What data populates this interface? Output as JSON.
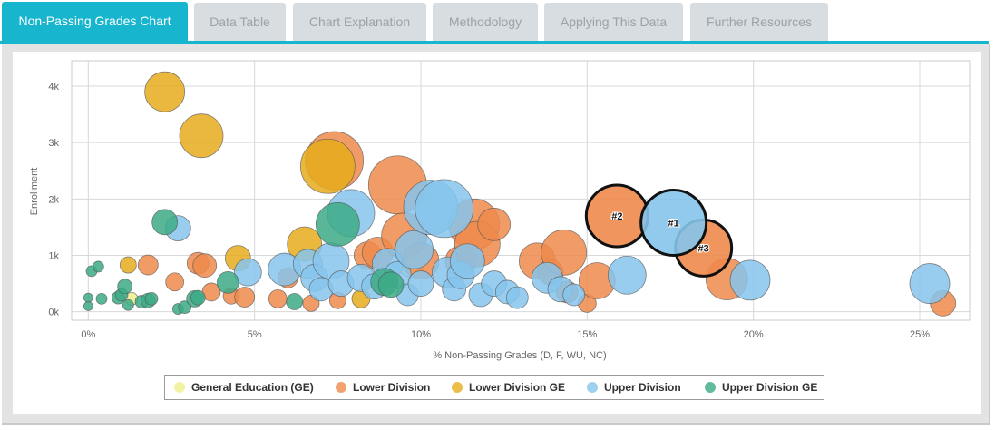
{
  "tabs": [
    {
      "label": "Non-Passing Grades Chart",
      "active": true
    },
    {
      "label": "Data Table"
    },
    {
      "label": "Chart Explanation"
    },
    {
      "label": "Methodology"
    },
    {
      "label": "Applying This Data"
    },
    {
      "label": "Further Resources"
    }
  ],
  "colors": {
    "General Education (GE)": "#f0ee8c",
    "Lower Division": "#ef8a4c",
    "Lower Division GE": "#e6ac1c",
    "Upper Division": "#86c4ec",
    "Upper Division GE": "#3caa86",
    "highlight_border": "#111111",
    "tab_active": "#17b5ce"
  },
  "chart_data": {
    "type": "scatter",
    "subtype": "bubble",
    "xlabel": "% Non-Passing Grades (D, F, WU, NC)",
    "ylabel": "Enrollment",
    "xlim": [
      -0.5,
      26.5
    ],
    "ylim": [
      -150,
      4450
    ],
    "x_ticks": [
      0,
      5,
      10,
      15,
      20,
      25
    ],
    "x_tick_labels": [
      "0%",
      "5%",
      "10%",
      "15%",
      "20%",
      "25%"
    ],
    "y_ticks": [
      0,
      1000,
      2000,
      3000,
      4000
    ],
    "y_tick_labels": [
      "0k",
      "1k",
      "2k",
      "3k",
      "4k"
    ],
    "grid": true,
    "legend_position": "bottom-center",
    "legend": [
      "General Education (GE)",
      "Lower Division",
      "Lower Division GE",
      "Upper Division",
      "Upper Division GE"
    ],
    "series": [
      {
        "name": "General Education (GE)",
        "points": [
          {
            "x": 1.3,
            "y": 230,
            "size": 7
          },
          {
            "x": 9.7,
            "y": 860,
            "size": 15
          }
        ]
      },
      {
        "name": "Lower Division",
        "points": [
          {
            "x": 1.8,
            "y": 830,
            "size": 11
          },
          {
            "x": 2.6,
            "y": 530,
            "size": 10
          },
          {
            "x": 3.3,
            "y": 860,
            "size": 12
          },
          {
            "x": 3.5,
            "y": 820,
            "size": 13
          },
          {
            "x": 3.7,
            "y": 350,
            "size": 10
          },
          {
            "x": 4.3,
            "y": 280,
            "size": 9
          },
          {
            "x": 4.7,
            "y": 260,
            "size": 11
          },
          {
            "x": 5.7,
            "y": 230,
            "size": 10
          },
          {
            "x": 6.0,
            "y": 600,
            "size": 11
          },
          {
            "x": 6.7,
            "y": 150,
            "size": 9
          },
          {
            "x": 7.4,
            "y": 2680,
            "size": 32
          },
          {
            "x": 7.5,
            "y": 200,
            "size": 9
          },
          {
            "x": 8.4,
            "y": 1000,
            "size": 15
          },
          {
            "x": 8.7,
            "y": 1050,
            "size": 17
          },
          {
            "x": 9.3,
            "y": 2250,
            "size": 32
          },
          {
            "x": 9.5,
            "y": 1350,
            "size": 25
          },
          {
            "x": 10.0,
            "y": 900,
            "size": 20
          },
          {
            "x": 11.2,
            "y": 900,
            "size": 17
          },
          {
            "x": 11.6,
            "y": 1550,
            "size": 28
          },
          {
            "x": 11.7,
            "y": 1200,
            "size": 25
          },
          {
            "x": 12.2,
            "y": 1550,
            "size": 18
          },
          {
            "x": 13.5,
            "y": 900,
            "size": 20
          },
          {
            "x": 13.9,
            "y": 700,
            "size": 14
          },
          {
            "x": 14.3,
            "y": 1050,
            "size": 25
          },
          {
            "x": 14.4,
            "y": 350,
            "size": 12
          },
          {
            "x": 15.0,
            "y": 150,
            "size": 10
          },
          {
            "x": 15.3,
            "y": 550,
            "size": 20
          },
          {
            "x": 15.9,
            "y": 1700,
            "size": 34,
            "label": "#2",
            "highlight": true
          },
          {
            "x": 18.5,
            "y": 1130,
            "size": 31,
            "label": "#3",
            "highlight": true
          },
          {
            "x": 19.2,
            "y": 580,
            "size": 23
          },
          {
            "x": 25.7,
            "y": 150,
            "size": 14
          }
        ]
      },
      {
        "name": "Lower Division GE",
        "points": [
          {
            "x": 2.3,
            "y": 3900,
            "size": 22
          },
          {
            "x": 3.4,
            "y": 3120,
            "size": 24
          },
          {
            "x": 4.5,
            "y": 950,
            "size": 14
          },
          {
            "x": 6.5,
            "y": 1200,
            "size": 19
          },
          {
            "x": 7.2,
            "y": 2580,
            "size": 30
          },
          {
            "x": 8.2,
            "y": 230,
            "size": 10
          },
          {
            "x": 1.2,
            "y": 830,
            "size": 9
          }
        ]
      },
      {
        "name": "Upper Division",
        "points": [
          {
            "x": 2.7,
            "y": 1480,
            "size": 14
          },
          {
            "x": 4.8,
            "y": 700,
            "size": 15
          },
          {
            "x": 5.9,
            "y": 750,
            "size": 18
          },
          {
            "x": 6.6,
            "y": 850,
            "size": 16
          },
          {
            "x": 6.8,
            "y": 600,
            "size": 15
          },
          {
            "x": 7.0,
            "y": 400,
            "size": 13
          },
          {
            "x": 7.3,
            "y": 900,
            "size": 20
          },
          {
            "x": 7.6,
            "y": 500,
            "size": 14
          },
          {
            "x": 7.9,
            "y": 1750,
            "size": 26
          },
          {
            "x": 8.2,
            "y": 600,
            "size": 15
          },
          {
            "x": 8.6,
            "y": 450,
            "size": 14
          },
          {
            "x": 9.0,
            "y": 850,
            "size": 17
          },
          {
            "x": 9.3,
            "y": 650,
            "size": 15
          },
          {
            "x": 9.6,
            "y": 300,
            "size": 12
          },
          {
            "x": 9.8,
            "y": 1100,
            "size": 21
          },
          {
            "x": 10.0,
            "y": 500,
            "size": 14
          },
          {
            "x": 10.3,
            "y": 1850,
            "size": 30
          },
          {
            "x": 10.7,
            "y": 1830,
            "size": 32
          },
          {
            "x": 10.8,
            "y": 700,
            "size": 17
          },
          {
            "x": 11.0,
            "y": 400,
            "size": 13
          },
          {
            "x": 11.2,
            "y": 650,
            "size": 15
          },
          {
            "x": 11.4,
            "y": 900,
            "size": 19
          },
          {
            "x": 11.8,
            "y": 300,
            "size": 13
          },
          {
            "x": 12.2,
            "y": 500,
            "size": 14
          },
          {
            "x": 12.6,
            "y": 350,
            "size": 13
          },
          {
            "x": 12.9,
            "y": 250,
            "size": 12
          },
          {
            "x": 13.8,
            "y": 600,
            "size": 17
          },
          {
            "x": 14.2,
            "y": 400,
            "size": 14
          },
          {
            "x": 14.6,
            "y": 300,
            "size": 12
          },
          {
            "x": 16.2,
            "y": 650,
            "size": 21
          },
          {
            "x": 17.6,
            "y": 1580,
            "size": 36,
            "label": "#1",
            "highlight": true
          },
          {
            "x": 19.9,
            "y": 560,
            "size": 22
          },
          {
            "x": 25.3,
            "y": 500,
            "size": 22
          }
        ]
      },
      {
        "name": "Upper Division GE",
        "points": [
          {
            "x": 0.0,
            "y": 250,
            "size": 5
          },
          {
            "x": 0.0,
            "y": 100,
            "size": 5
          },
          {
            "x": 0.1,
            "y": 720,
            "size": 6
          },
          {
            "x": 0.3,
            "y": 800,
            "size": 6
          },
          {
            "x": 0.4,
            "y": 230,
            "size": 6
          },
          {
            "x": 0.9,
            "y": 250,
            "size": 7
          },
          {
            "x": 1.0,
            "y": 300,
            "size": 7
          },
          {
            "x": 1.1,
            "y": 450,
            "size": 8
          },
          {
            "x": 1.2,
            "y": 120,
            "size": 6
          },
          {
            "x": 1.6,
            "y": 180,
            "size": 7
          },
          {
            "x": 1.8,
            "y": 200,
            "size": 8
          },
          {
            "x": 1.9,
            "y": 230,
            "size": 7
          },
          {
            "x": 2.3,
            "y": 1590,
            "size": 14
          },
          {
            "x": 2.7,
            "y": 50,
            "size": 6
          },
          {
            "x": 2.9,
            "y": 80,
            "size": 7
          },
          {
            "x": 3.2,
            "y": 230,
            "size": 9
          },
          {
            "x": 3.3,
            "y": 250,
            "size": 8
          },
          {
            "x": 4.2,
            "y": 520,
            "size": 12
          },
          {
            "x": 6.2,
            "y": 180,
            "size": 9
          },
          {
            "x": 7.5,
            "y": 1550,
            "size": 24
          },
          {
            "x": 8.9,
            "y": 530,
            "size": 15
          },
          {
            "x": 9.1,
            "y": 480,
            "size": 14
          }
        ]
      }
    ]
  }
}
